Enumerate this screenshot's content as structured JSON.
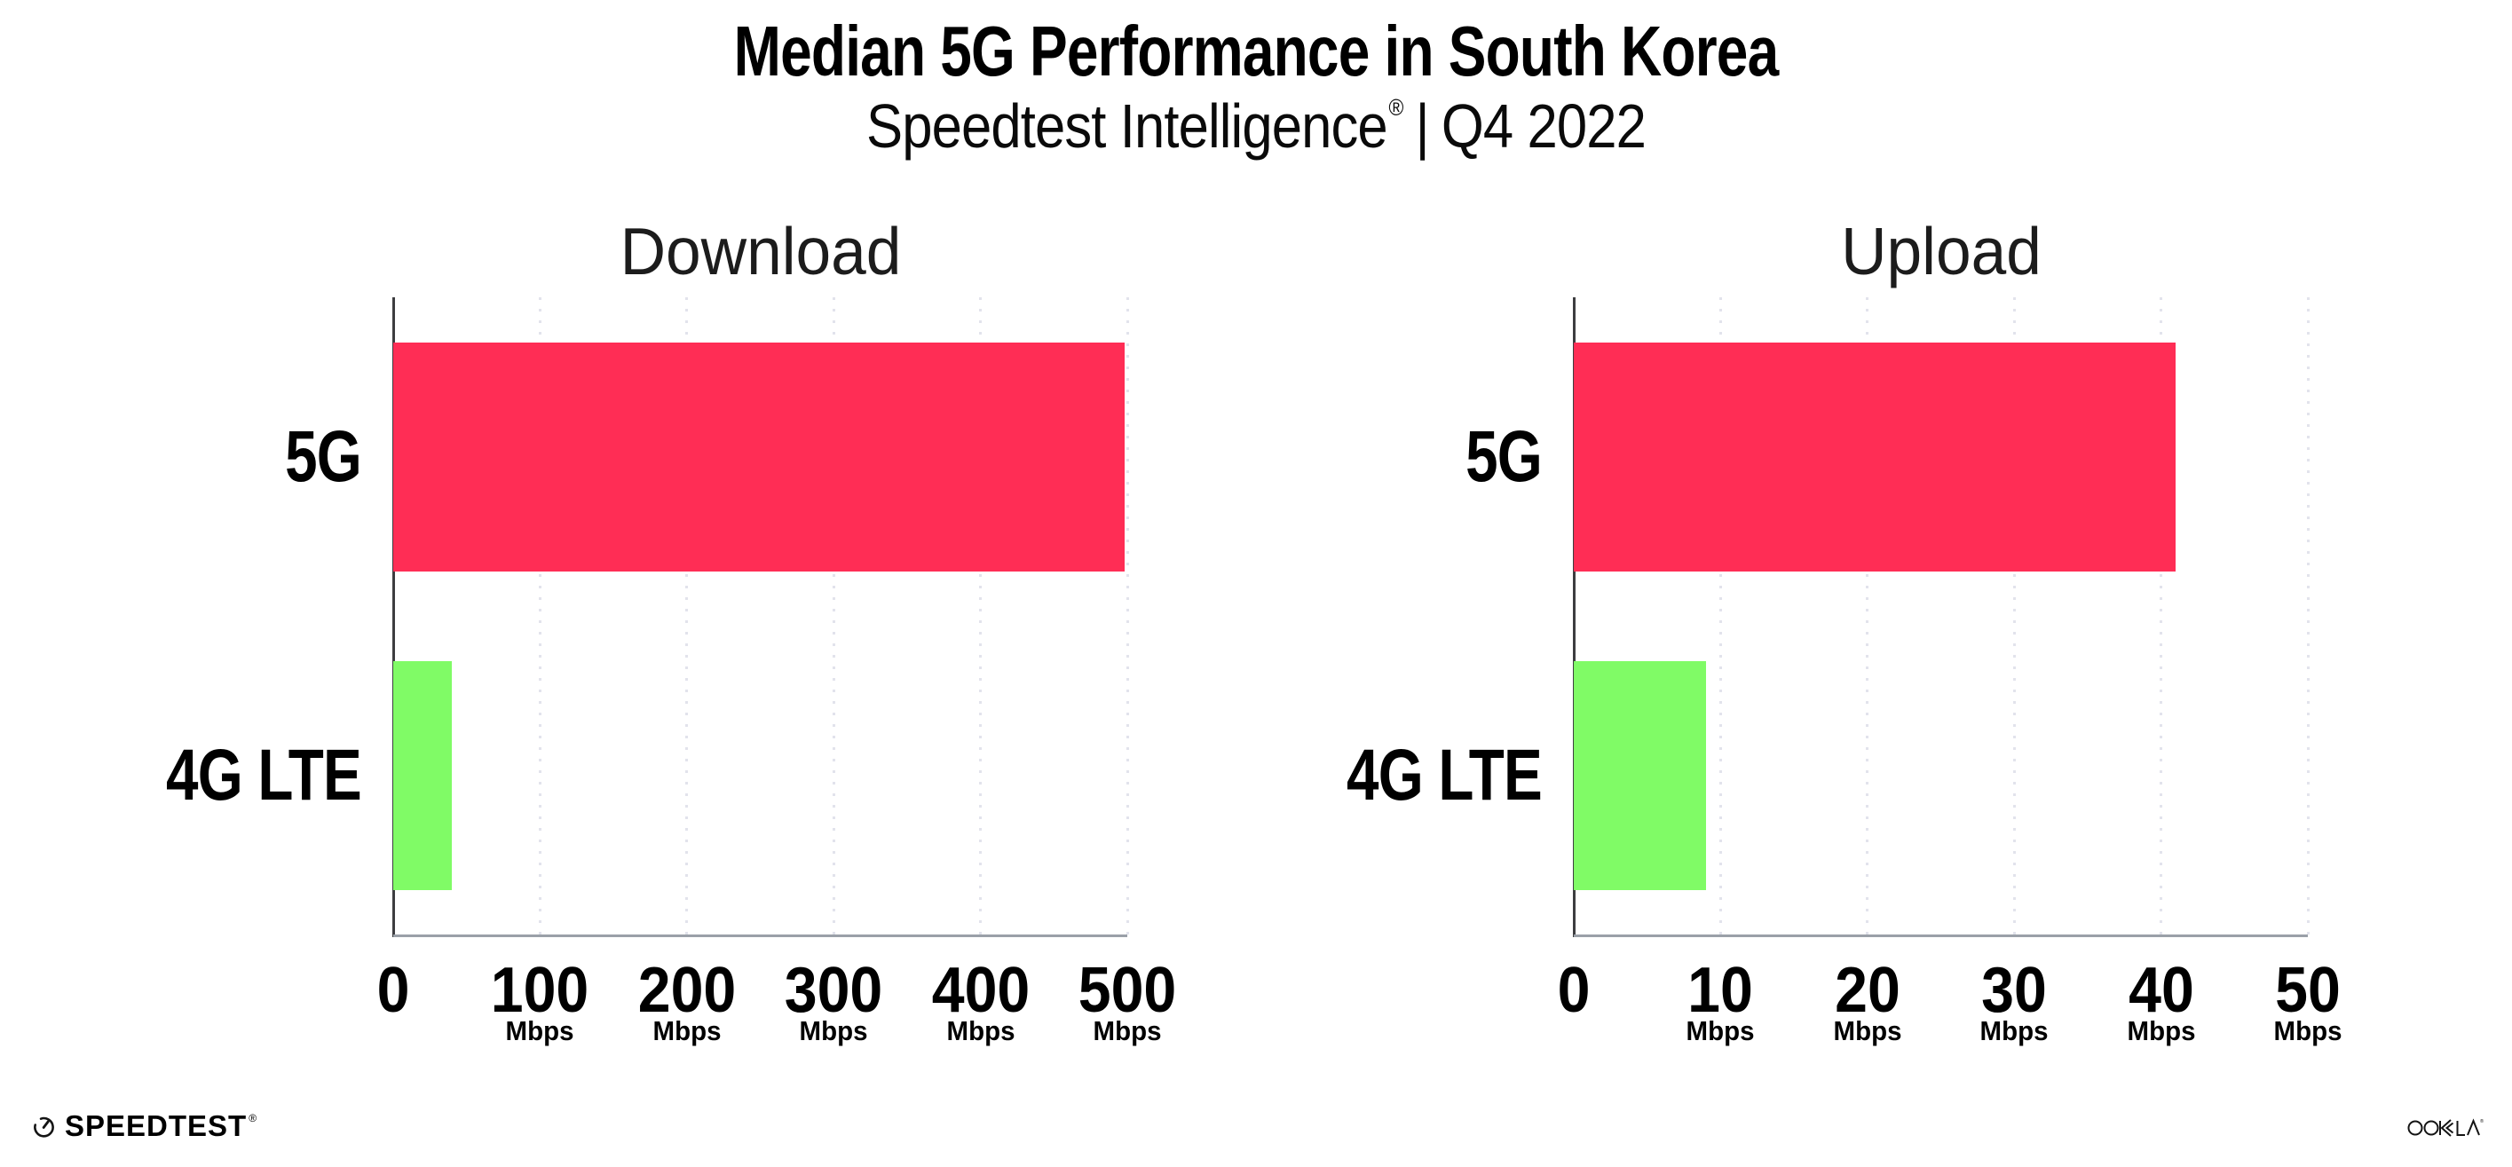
{
  "header": {
    "title": "Median 5G Performance in South Korea",
    "subtitle_brand": "Speedtest Intelligence",
    "subtitle_reg": "®",
    "subtitle_divider": "|",
    "subtitle_period": "Q4 2022"
  },
  "footer": {
    "speedtest_label": "SPEEDTEST",
    "speedtest_reg": "®",
    "ookla_label": "OOKLA"
  },
  "colors": {
    "bar_5g": "#ff2d55",
    "bar_4g_lte": "#80fb66",
    "y_axis": "#3d3d40",
    "x_axis": "#9aa0a8",
    "gridline": "#e2e3ec",
    "text": "#000000"
  },
  "chart_data": [
    {
      "type": "bar",
      "orientation": "horizontal",
      "title": "Download",
      "categories": [
        "5G",
        "4G LTE"
      ],
      "values": [
        498,
        40
      ],
      "unit": "Mbps",
      "bar_colors": [
        "#ff2d55",
        "#80fb66"
      ],
      "xlim": [
        0,
        500
      ],
      "xticks": [
        0,
        100,
        200,
        300,
        400,
        500
      ],
      "tick_unit_label": "Mbps",
      "grid": "vertical-dotted",
      "legend": "none"
    },
    {
      "type": "bar",
      "orientation": "horizontal",
      "title": "Upload",
      "categories": [
        "5G",
        "4G LTE"
      ],
      "values": [
        41,
        9
      ],
      "unit": "Mbps",
      "bar_colors": [
        "#ff2d55",
        "#80fb66"
      ],
      "xlim": [
        0,
        50
      ],
      "xticks": [
        0,
        10,
        20,
        30,
        40,
        50
      ],
      "tick_unit_label": "Mbps",
      "grid": "vertical-dotted",
      "legend": "none"
    }
  ]
}
